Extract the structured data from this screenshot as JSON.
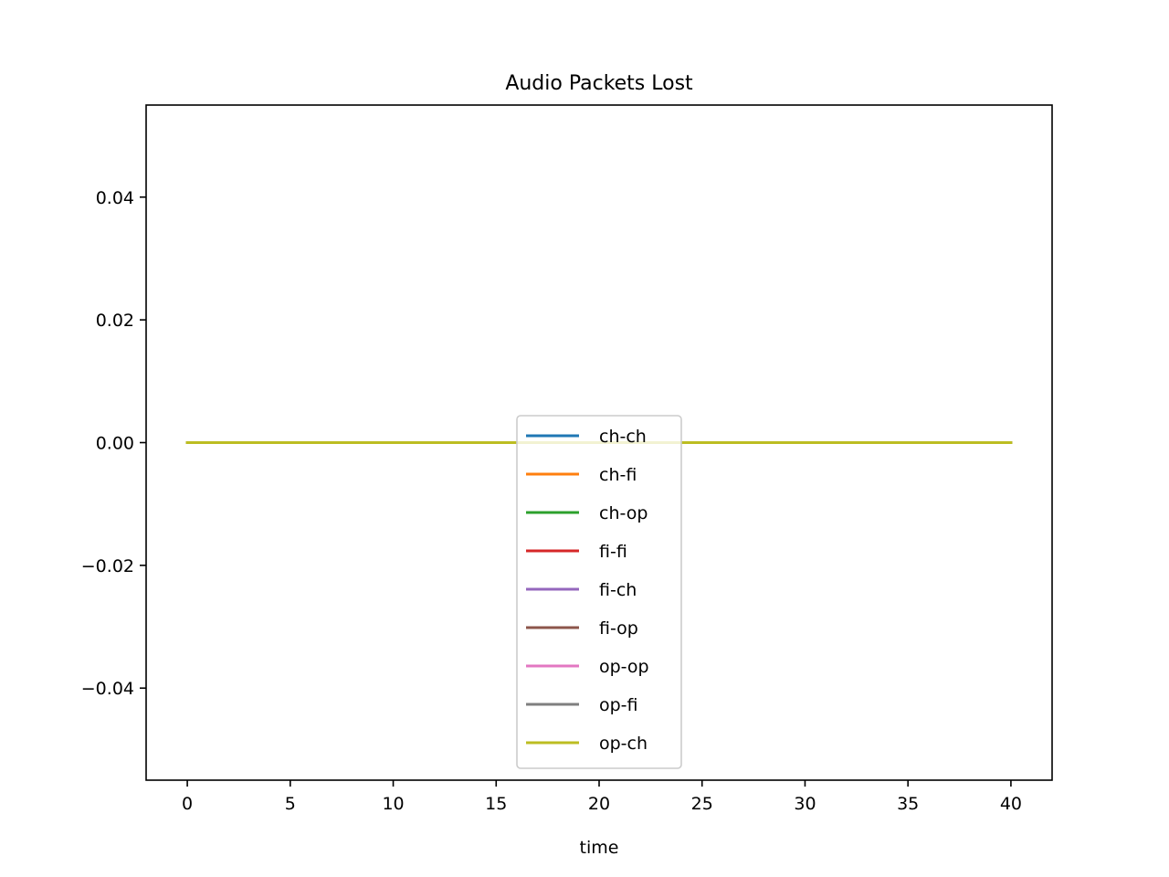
{
  "chart_data": {
    "type": "line",
    "title": "Audio Packets Lost",
    "xlabel": "time",
    "ylabel": "",
    "xlim": [
      -2,
      42
    ],
    "ylim": [
      -0.055,
      0.055
    ],
    "xticks": [
      0,
      5,
      10,
      15,
      20,
      25,
      30,
      35,
      40
    ],
    "xtick_labels": [
      "0",
      "5",
      "10",
      "15",
      "20",
      "25",
      "30",
      "35",
      "40"
    ],
    "yticks": [
      0.04,
      0.02,
      0.0,
      -0.02,
      -0.04
    ],
    "ytick_labels": [
      "0.04",
      "0.02",
      "0.00",
      "−0.02",
      "−0.04"
    ],
    "grid": false,
    "legend_position": "lower center",
    "x": [
      0,
      40
    ],
    "series": [
      {
        "name": "ch-ch",
        "color": "#1f77b4",
        "values": [
          0,
          0
        ]
      },
      {
        "name": "ch-fi",
        "color": "#ff7f0e",
        "values": [
          0,
          0
        ]
      },
      {
        "name": "ch-op",
        "color": "#2ca02c",
        "values": [
          0,
          0
        ]
      },
      {
        "name": "fi-fi",
        "color": "#d62728",
        "values": [
          0,
          0
        ]
      },
      {
        "name": "fi-ch",
        "color": "#9467bd",
        "values": [
          0,
          0
        ]
      },
      {
        "name": "fi-op",
        "color": "#8c564b",
        "values": [
          0,
          0
        ]
      },
      {
        "name": "op-op",
        "color": "#e377c2",
        "values": [
          0,
          0
        ]
      },
      {
        "name": "op-fi",
        "color": "#7f7f7f",
        "values": [
          0,
          0
        ]
      },
      {
        "name": "op-ch",
        "color": "#bcbd22",
        "values": [
          0,
          0
        ]
      }
    ]
  }
}
